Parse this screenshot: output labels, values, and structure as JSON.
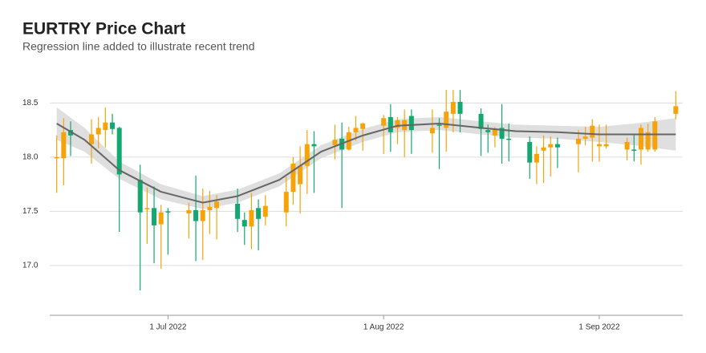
{
  "chart_data": {
    "type": "candlestick",
    "title": "EURTRY Price Chart",
    "subtitle": "Regression line added to illustrate recent trend",
    "up_color": "#f5a30b",
    "down_color": "#13a86f",
    "trend_color": "#666666",
    "band_color": "#d9d9d9",
    "grid": true,
    "xlim": [
      "2022-06-14",
      "2022-09-13"
    ],
    "xticks": [
      {
        "value": "2022-07-01",
        "label": "1 Jul 2022"
      },
      {
        "value": "2022-08-01",
        "label": "1 Aug 2022"
      },
      {
        "value": "2022-09-01",
        "label": "1 Sep 2022"
      }
    ],
    "ylim": [
      16.54,
      18.71
    ],
    "yticks": [
      {
        "value": 17,
        "label": "17.0"
      },
      17.5,
      {
        "value": 18,
        "label": "18.0"
      },
      18.5
    ],
    "x": [
      "2022-06-15",
      "2022-06-16",
      "2022-06-17",
      "2022-06-20",
      "2022-06-21",
      "2022-06-22",
      "2022-06-23",
      "2022-06-24",
      "2022-06-27",
      "2022-06-28",
      "2022-06-29",
      "2022-06-30",
      "2022-07-01",
      "2022-07-04",
      "2022-07-05",
      "2022-07-06",
      "2022-07-07",
      "2022-07-08",
      "2022-07-11",
      "2022-07-12",
      "2022-07-13",
      "2022-07-14",
      "2022-07-15",
      "2022-07-18",
      "2022-07-19",
      "2022-07-20",
      "2022-07-21",
      "2022-07-22",
      "2022-07-25",
      "2022-07-26",
      "2022-07-27",
      "2022-07-28",
      "2022-07-29",
      "2022-08-01",
      "2022-08-02",
      "2022-08-03",
      "2022-08-04",
      "2022-08-05",
      "2022-08-08",
      "2022-08-09",
      "2022-08-10",
      "2022-08-11",
      "2022-08-12",
      "2022-08-15",
      "2022-08-16",
      "2022-08-17",
      "2022-08-18",
      "2022-08-19",
      "2022-08-22",
      "2022-08-23",
      "2022-08-24",
      "2022-08-25",
      "2022-08-26",
      "2022-08-29",
      "2022-08-30",
      "2022-08-31",
      "2022-09-01",
      "2022-09-02",
      "2022-09-05",
      "2022-09-06",
      "2022-09-07",
      "2022-09-08",
      "2022-09-09",
      "2022-09-12"
    ],
    "open": [
      17.99,
      17.99,
      18.25,
      18.12,
      18.21,
      18.25,
      18.32,
      18.27,
      17.79,
      17.52,
      17.53,
      17.38,
      17.5,
      17.48,
      17.51,
      17.41,
      17.51,
      17.53,
      17.57,
      17.42,
      17.36,
      17.53,
      17.45,
      17.49,
      17.68,
      17.75,
      17.92,
      18.12,
      18.11,
      18.17,
      18.07,
      18.23,
      18.26,
      18.29,
      18.37,
      18.27,
      18.25,
      18.38,
      18.22,
      18.3,
      18.27,
      18.4,
      18.51,
      18.4,
      18.25,
      18.2,
      18.27,
      18.17,
      18.14,
      17.95,
      18.06,
      18.09,
      18.12,
      18.12,
      18.17,
      18.18,
      18.1,
      18.1,
      18.07,
      18.07,
      18.07,
      18.07,
      18.07,
      18.4
    ],
    "high": [
      18.2,
      18.36,
      18.33,
      18.35,
      18.37,
      18.46,
      18.4,
      18.28,
      17.93,
      17.72,
      17.73,
      17.56,
      17.53,
      17.58,
      17.83,
      17.71,
      17.69,
      17.65,
      17.71,
      17.49,
      17.67,
      17.61,
      17.65,
      17.82,
      18.0,
      18.1,
      18.25,
      18.24,
      18.3,
      18.32,
      18.28,
      18.38,
      18.32,
      18.39,
      18.49,
      18.37,
      18.44,
      18.44,
      18.44,
      18.36,
      18.62,
      18.62,
      18.62,
      18.45,
      18.3,
      18.28,
      18.49,
      18.31,
      18.19,
      18.1,
      18.2,
      18.19,
      18.18,
      18.25,
      18.28,
      18.35,
      18.3,
      18.3,
      18.18,
      18.21,
      18.3,
      18.31,
      18.37,
      18.61
    ],
    "low": [
      17.67,
      17.74,
      18.01,
      17.94,
      18.08,
      18.09,
      18.21,
      17.31,
      16.77,
      17.2,
      17.02,
      16.97,
      17.1,
      17.25,
      17.04,
      17.05,
      17.29,
      17.24,
      17.31,
      17.19,
      17.15,
      17.14,
      17.37,
      17.36,
      17.56,
      17.48,
      17.66,
      17.67,
      17.98,
      17.53,
      18.06,
      18.15,
      18.06,
      18.03,
      18.05,
      18.12,
      18.0,
      18.03,
      18.04,
      17.89,
      18.05,
      18.23,
      18.23,
      18.01,
      18.04,
      18.09,
      17.94,
      17.96,
      17.8,
      17.75,
      17.76,
      17.82,
      17.9,
      17.86,
      18.11,
      17.96,
      17.96,
      18.08,
      17.97,
      17.96,
      17.93,
      18.05,
      18.05,
      18.35
    ],
    "close": [
      18.0,
      18.23,
      18.2,
      18.21,
      18.27,
      18.32,
      18.26,
      17.84,
      17.49,
      17.53,
      17.37,
      17.49,
      17.49,
      17.51,
      17.41,
      17.51,
      17.54,
      17.59,
      17.43,
      17.36,
      17.51,
      17.43,
      17.55,
      17.68,
      17.94,
      17.92,
      18.12,
      18.1,
      18.16,
      18.07,
      18.23,
      18.27,
      18.31,
      18.36,
      18.23,
      18.34,
      18.34,
      18.25,
      18.27,
      18.29,
      18.42,
      18.51,
      18.4,
      18.26,
      18.23,
      18.26,
      18.17,
      18.16,
      17.95,
      18.03,
      18.09,
      18.12,
      18.09,
      18.17,
      18.19,
      18.29,
      18.12,
      18.12,
      18.14,
      18.06,
      18.27,
      18.23,
      18.33,
      18.47
    ],
    "trend": {
      "x": [
        "2022-06-15",
        "2022-06-19",
        "2022-06-24",
        "2022-06-30",
        "2022-07-06",
        "2022-07-11",
        "2022-07-17",
        "2022-07-23",
        "2022-07-29",
        "2022-08-03",
        "2022-08-09",
        "2022-08-15",
        "2022-08-20",
        "2022-08-26",
        "2022-09-01",
        "2022-09-06",
        "2022-09-12"
      ],
      "values": [
        18.31,
        18.16,
        17.88,
        17.68,
        17.58,
        17.64,
        17.79,
        18.05,
        18.2,
        18.29,
        18.31,
        18.27,
        18.24,
        18.23,
        18.21,
        18.21,
        18.21
      ],
      "lower": [
        18.16,
        18.05,
        17.8,
        17.61,
        17.52,
        17.58,
        17.73,
        17.99,
        18.14,
        18.23,
        18.25,
        18.21,
        18.18,
        18.17,
        18.14,
        18.11,
        18.06
      ],
      "upper": [
        18.46,
        18.27,
        17.96,
        17.75,
        17.64,
        17.7,
        17.85,
        18.11,
        18.26,
        18.35,
        18.37,
        18.33,
        18.3,
        18.29,
        18.28,
        18.31,
        18.36
      ]
    }
  }
}
